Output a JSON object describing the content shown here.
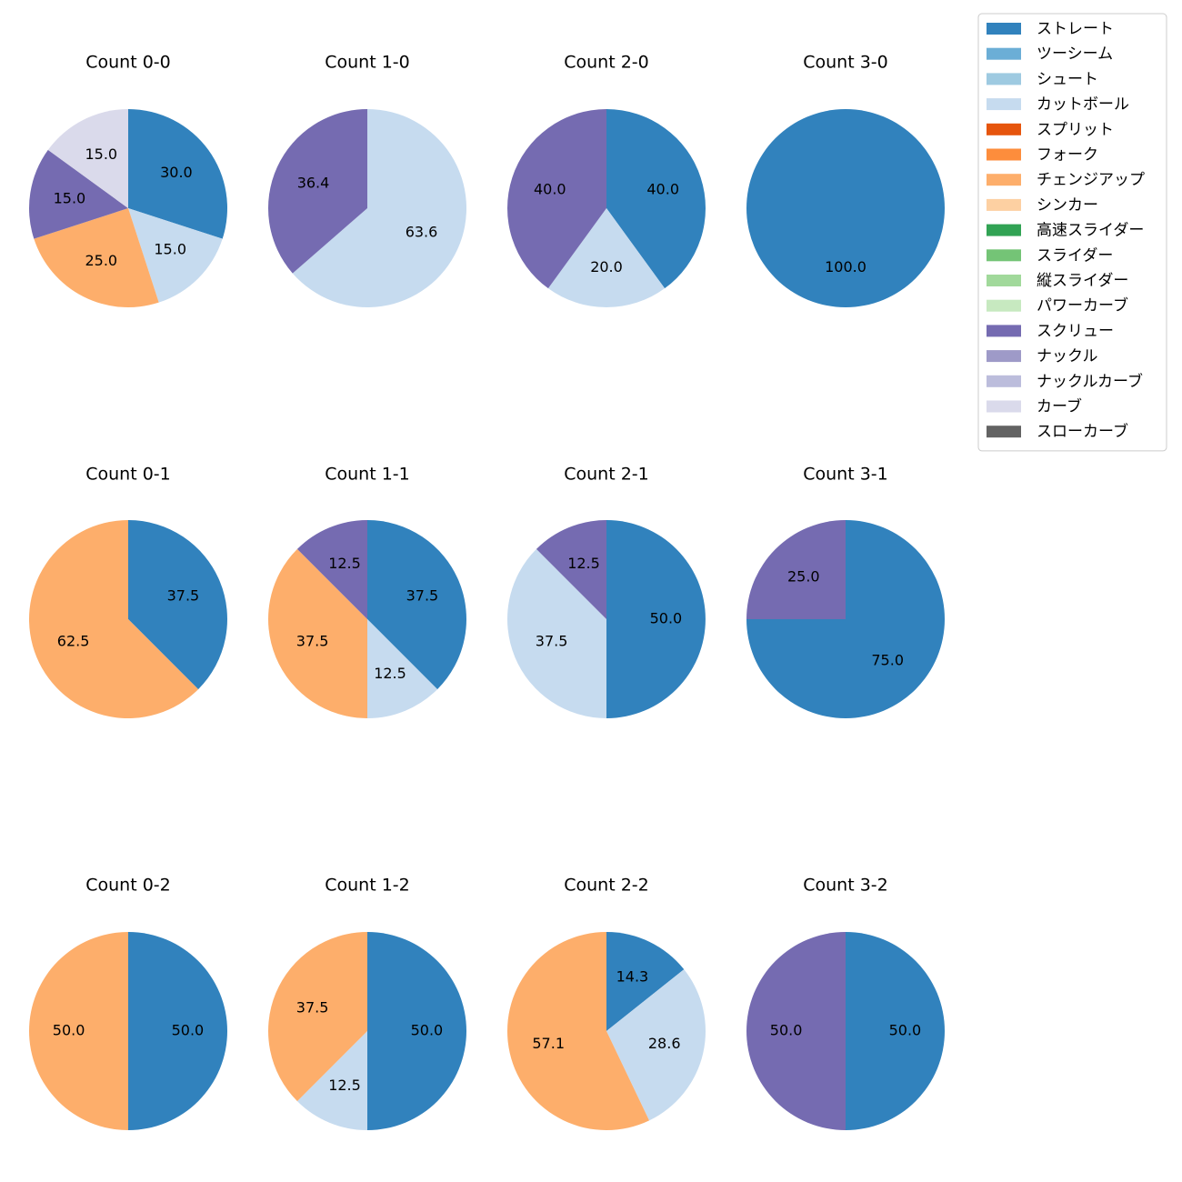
{
  "chart_data": {
    "type": "pie",
    "legend": {
      "placement": "top-right",
      "entries": [
        {
          "name": "ストレート",
          "color": "#3182bd"
        },
        {
          "name": "ツーシーム",
          "color": "#6baed6"
        },
        {
          "name": "シュート",
          "color": "#9ecae1"
        },
        {
          "name": "カットボール",
          "color": "#c6dbef"
        },
        {
          "name": "スプリット",
          "color": "#e6550d"
        },
        {
          "name": "フォーク",
          "color": "#fd8d3c"
        },
        {
          "name": "チェンジアップ",
          "color": "#fdae6b"
        },
        {
          "name": "シンカー",
          "color": "#fdd0a2"
        },
        {
          "name": "高速スライダー",
          "color": "#31a354"
        },
        {
          "name": "スライダー",
          "color": "#74c476"
        },
        {
          "name": "縦スライダー",
          "color": "#a1d99b"
        },
        {
          "name": "パワーカーブ",
          "color": "#c7e9c0"
        },
        {
          "name": "スクリュー",
          "color": "#756bb1"
        },
        {
          "name": "ナックル",
          "color": "#9e9ac8"
        },
        {
          "name": "ナックルカーブ",
          "color": "#bcbddc"
        },
        {
          "name": "カーブ",
          "color": "#dadaeb"
        },
        {
          "name": "スローカーブ",
          "color": "#636363"
        }
      ]
    },
    "pies": [
      {
        "title": "Count 0-0",
        "slices": [
          {
            "pitch": "ストレート",
            "value": 30.0,
            "label": "30.0"
          },
          {
            "pitch": "カットボール",
            "value": 15.0,
            "label": "15.0"
          },
          {
            "pitch": "チェンジアップ",
            "value": 25.0,
            "label": "25.0"
          },
          {
            "pitch": "スクリュー",
            "value": 15.0,
            "label": "15.0"
          },
          {
            "pitch": "カーブ",
            "value": 15.0,
            "label": "15.0"
          }
        ]
      },
      {
        "title": "Count 1-0",
        "slices": [
          {
            "pitch": "カットボール",
            "value": 63.6,
            "label": "63.6"
          },
          {
            "pitch": "スクリュー",
            "value": 36.4,
            "label": "36.4"
          }
        ]
      },
      {
        "title": "Count 2-0",
        "slices": [
          {
            "pitch": "ストレート",
            "value": 40.0,
            "label": "40.0"
          },
          {
            "pitch": "カットボール",
            "value": 20.0,
            "label": "20.0"
          },
          {
            "pitch": "スクリュー",
            "value": 40.0,
            "label": "40.0"
          }
        ]
      },
      {
        "title": "Count 3-0",
        "slices": [
          {
            "pitch": "ストレート",
            "value": 100.0,
            "label": "100.0"
          }
        ]
      },
      {
        "title": "Count 0-1",
        "slices": [
          {
            "pitch": "ストレート",
            "value": 37.5,
            "label": "37.5"
          },
          {
            "pitch": "チェンジアップ",
            "value": 62.5,
            "label": "62.5"
          }
        ]
      },
      {
        "title": "Count 1-1",
        "slices": [
          {
            "pitch": "ストレート",
            "value": 37.5,
            "label": "37.5"
          },
          {
            "pitch": "カットボール",
            "value": 12.5,
            "label": "12.5"
          },
          {
            "pitch": "チェンジアップ",
            "value": 37.5,
            "label": "37.5"
          },
          {
            "pitch": "スクリュー",
            "value": 12.5,
            "label": "12.5"
          }
        ]
      },
      {
        "title": "Count 2-1",
        "slices": [
          {
            "pitch": "ストレート",
            "value": 50.0,
            "label": "50.0"
          },
          {
            "pitch": "カットボール",
            "value": 37.5,
            "label": "37.5"
          },
          {
            "pitch": "スクリュー",
            "value": 12.5,
            "label": "12.5"
          }
        ]
      },
      {
        "title": "Count 3-1",
        "slices": [
          {
            "pitch": "ストレート",
            "value": 75.0,
            "label": "75.0"
          },
          {
            "pitch": "スクリュー",
            "value": 25.0,
            "label": "25.0"
          }
        ]
      },
      {
        "title": "Count 0-2",
        "slices": [
          {
            "pitch": "ストレート",
            "value": 50.0,
            "label": "50.0"
          },
          {
            "pitch": "チェンジアップ",
            "value": 50.0,
            "label": "50.0"
          }
        ]
      },
      {
        "title": "Count 1-2",
        "slices": [
          {
            "pitch": "ストレート",
            "value": 50.0,
            "label": "50.0"
          },
          {
            "pitch": "カットボール",
            "value": 12.5,
            "label": "12.5"
          },
          {
            "pitch": "チェンジアップ",
            "value": 37.5,
            "label": "37.5"
          }
        ]
      },
      {
        "title": "Count 2-2",
        "slices": [
          {
            "pitch": "ストレート",
            "value": 14.3,
            "label": "14.3"
          },
          {
            "pitch": "カットボール",
            "value": 28.6,
            "label": "28.6"
          },
          {
            "pitch": "チェンジアップ",
            "value": 57.1,
            "label": "57.1"
          }
        ]
      },
      {
        "title": "Count 3-2",
        "slices": [
          {
            "pitch": "ストレート",
            "value": 50.0,
            "label": "50.0"
          },
          {
            "pitch": "スクリュー",
            "value": 50.0,
            "label": "50.0"
          }
        ]
      }
    ]
  }
}
